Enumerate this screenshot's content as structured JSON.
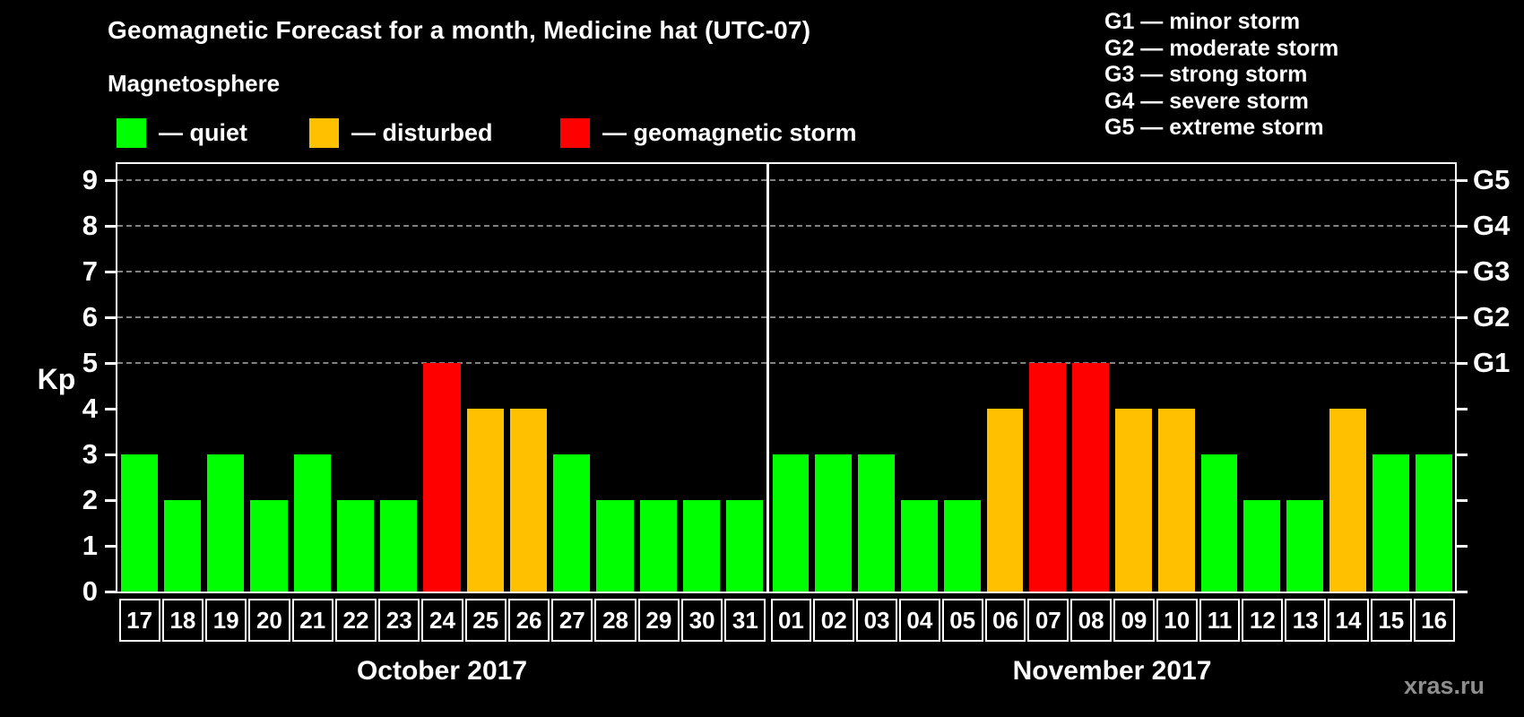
{
  "header": {
    "title": "Geomagnetic Forecast for a month, Medicine hat (UTC-07)",
    "subtitle": "Magnetosphere"
  },
  "legend": {
    "items": [
      {
        "status": "quiet",
        "label": "— quiet",
        "color": "#00ff00"
      },
      {
        "status": "disturbed",
        "label": "— disturbed",
        "color": "#ffc000"
      },
      {
        "status": "storm",
        "label": "— geomagnetic storm",
        "color": "#ff0000"
      }
    ]
  },
  "g_scale": {
    "items": [
      "G1 — minor storm",
      "G2 — moderate storm",
      "G3 — strong storm",
      "G4 — severe storm",
      "G5 — extreme storm"
    ]
  },
  "watermark": "xras.ru",
  "chart_data": {
    "type": "bar",
    "title": "Geomagnetic Forecast for a month, Medicine hat (UTC-07)",
    "ylabel": "Kp",
    "ylim": [
      0,
      9
    ],
    "y_ticks": [
      0,
      1,
      2,
      3,
      4,
      5,
      6,
      7,
      8,
      9
    ],
    "gridlines_at": [
      5,
      6,
      7,
      8,
      9
    ],
    "grid": "dashed-horizontal",
    "right_axis_labels": [
      {
        "label": "G1",
        "kp": 5
      },
      {
        "label": "G2",
        "kp": 6
      },
      {
        "label": "G3",
        "kp": 7
      },
      {
        "label": "G4",
        "kp": 8
      },
      {
        "label": "G5",
        "kp": 9
      }
    ],
    "status_colors": {
      "quiet": "#00ff00",
      "disturbed": "#ffc000",
      "storm": "#ff0000"
    },
    "groups": [
      {
        "label": "October 2017",
        "days": [
          "17",
          "18",
          "19",
          "20",
          "21",
          "22",
          "23",
          "24",
          "25",
          "26",
          "27",
          "28",
          "29",
          "30",
          "31"
        ],
        "values": [
          3,
          2,
          3,
          2,
          3,
          2,
          2,
          5,
          4,
          4,
          3,
          2,
          2,
          2,
          2
        ],
        "status": [
          "quiet",
          "quiet",
          "quiet",
          "quiet",
          "quiet",
          "quiet",
          "quiet",
          "storm",
          "disturbed",
          "disturbed",
          "quiet",
          "quiet",
          "quiet",
          "quiet",
          "quiet"
        ]
      },
      {
        "label": "November 2017",
        "days": [
          "01",
          "02",
          "03",
          "04",
          "05",
          "06",
          "07",
          "08",
          "09",
          "10",
          "11",
          "12",
          "13",
          "14",
          "15",
          "16"
        ],
        "values": [
          3,
          3,
          3,
          2,
          2,
          4,
          5,
          5,
          4,
          4,
          3,
          2,
          2,
          4,
          3,
          3
        ],
        "status": [
          "quiet",
          "quiet",
          "quiet",
          "quiet",
          "quiet",
          "disturbed",
          "storm",
          "storm",
          "disturbed",
          "disturbed",
          "quiet",
          "quiet",
          "quiet",
          "disturbed",
          "quiet",
          "quiet"
        ]
      }
    ]
  }
}
